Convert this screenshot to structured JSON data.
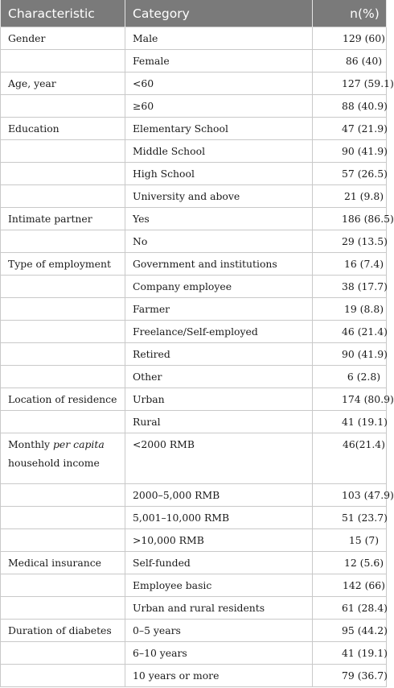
{
  "header": {
    "col1": "Characteristic",
    "col2": "Category",
    "col3": "n(%)"
  },
  "rows": [
    {
      "characteristic": "Gender",
      "category": "Male",
      "value": "129 (60)"
    },
    {
      "characteristic": "",
      "category": "Female",
      "value": "86 (40)"
    },
    {
      "characteristic": "Age, year",
      "category": "<60",
      "value": "127 (59.1)"
    },
    {
      "characteristic": "",
      "category": "≥60",
      "value": "88 (40.9)"
    },
    {
      "characteristic": "Education",
      "category": "Elementary School",
      "value": "47 (21.9)"
    },
    {
      "characteristic": "",
      "category": "Middle School",
      "value": "90 (41.9)"
    },
    {
      "characteristic": "",
      "category": "High School",
      "value": "57 (26.5)"
    },
    {
      "characteristic": "",
      "category": "University and above",
      "value": "21 (9.8)"
    },
    {
      "characteristic": "Intimate partner",
      "category": "Yes",
      "value": "186 (86.5)"
    },
    {
      "characteristic": "",
      "category": "No",
      "value": "29 (13.5)"
    },
    {
      "characteristic": "Type of employment",
      "category": "Government and institutions",
      "value": "16 (7.4)"
    },
    {
      "characteristic": "",
      "category": "Company employee",
      "value": "38 (17.7)"
    },
    {
      "characteristic": "",
      "category": "Farmer",
      "value": "19 (8.8)"
    },
    {
      "characteristic": "",
      "category": "Freelance/Self-employed",
      "value": "46 (21.4)"
    },
    {
      "characteristic": "",
      "category": "Retired",
      "value": "90 (41.9)"
    },
    {
      "characteristic": "",
      "category": "Other",
      "value": "6 (2.8)"
    },
    {
      "characteristic": "Location of residence",
      "category": "Urban",
      "value": "174 (80.9)"
    },
    {
      "characteristic": "",
      "category": "Rural",
      "value": "41 (19.1)"
    },
    {
      "characteristic_parts": {
        "pre": "Monthly ",
        "italic": "per capita",
        "post": " household income"
      },
      "category": "<2000 RMB",
      "value": "46(21.4)"
    },
    {
      "characteristic": "",
      "category": "2000–5,000 RMB",
      "value": "103 (47.9)"
    },
    {
      "characteristic": "",
      "category": "5,001–10,000 RMB",
      "value": "51 (23.7)"
    },
    {
      "characteristic": "",
      "category": ">10,000 RMB",
      "value": "15 (7)"
    },
    {
      "characteristic": "Medical insurance",
      "category": "Self-funded",
      "value": "12 (5.6)"
    },
    {
      "characteristic": "",
      "category": "Employee basic",
      "value": "142 (66)"
    },
    {
      "characteristic": "",
      "category": "Urban and rural residents",
      "value": "61 (28.4)"
    },
    {
      "characteristic": "Duration of diabetes",
      "category": "0–5 years",
      "value": "95 (44.2)"
    },
    {
      "characteristic": "",
      "category": "6–10 years",
      "value": "41 (19.1)"
    },
    {
      "characteristic": "",
      "category": "10 years or more",
      "value": "79 (36.7)"
    }
  ]
}
